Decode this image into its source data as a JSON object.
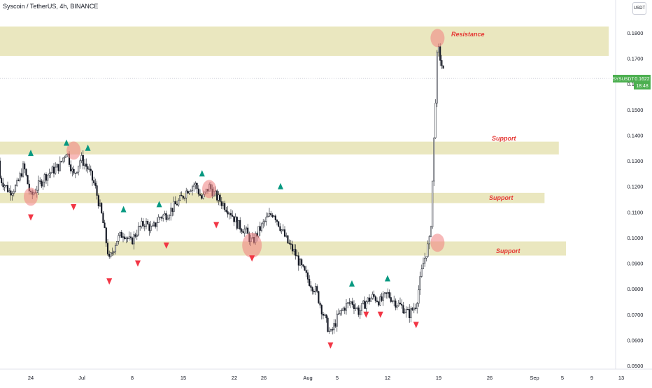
{
  "header": {
    "title": "Syscoin / TetherUS, 4h, BINANCE",
    "currency_button": "USDT"
  },
  "price_label": {
    "symbol": "SYSUSDT",
    "price": "0.1622",
    "countdown": "18:48",
    "color": "#4caf50"
  },
  "colors": {
    "background": "#ffffff",
    "up_marker": "#089981",
    "down_marker": "#f23645",
    "zone_fill": "#e6e3b4",
    "highlight_circle": "#f08080",
    "zone_label": "#e53935"
  },
  "chart_data": {
    "type": "candlestick",
    "symbol": "SYSUSDT",
    "timeframe": "4h",
    "exchange": "BINANCE",
    "yaxis": {
      "ticks": [
        "0.1800",
        "0.1700",
        "0.1600",
        "0.1500",
        "0.1400",
        "0.1300",
        "0.1200",
        "0.1100",
        "0.1000",
        "0.0900",
        "0.0800",
        "0.0700",
        "0.0600",
        "0.0500"
      ]
    },
    "xaxis": {
      "ticks": [
        "24",
        "Jul",
        "8",
        "15",
        "22",
        "26",
        "Aug",
        "5",
        "12",
        "19",
        "26",
        "Sep",
        "5",
        "9",
        "13"
      ]
    },
    "last_price": 0.1622,
    "price_path": [
      [
        "2024-06-18",
        0.13
      ],
      [
        "2024-06-19",
        0.126
      ],
      [
        "2024-06-20",
        0.122
      ],
      [
        "2024-06-21",
        0.118
      ],
      [
        "2024-06-22",
        0.12
      ],
      [
        "2024-06-23",
        0.128
      ],
      [
        "2024-06-24",
        0.116
      ],
      [
        "2024-06-25",
        0.12
      ],
      [
        "2024-06-26",
        0.124
      ],
      [
        "2024-06-27",
        0.126
      ],
      [
        "2024-06-28",
        0.128
      ],
      [
        "2024-06-29",
        0.134
      ],
      [
        "2024-06-30",
        0.124
      ],
      [
        "2024-07-01",
        0.131
      ],
      [
        "2024-07-02",
        0.127
      ],
      [
        "2024-07-03",
        0.12
      ],
      [
        "2024-07-04",
        0.108
      ],
      [
        "2024-07-05",
        0.091
      ],
      [
        "2024-07-06",
        0.099
      ],
      [
        "2024-07-07",
        0.102
      ],
      [
        "2024-07-08",
        0.098
      ],
      [
        "2024-07-09",
        0.103
      ],
      [
        "2024-07-10",
        0.106
      ],
      [
        "2024-07-11",
        0.103
      ],
      [
        "2024-07-12",
        0.108
      ],
      [
        "2024-07-13",
        0.109
      ],
      [
        "2024-07-14",
        0.112
      ],
      [
        "2024-07-15",
        0.115
      ],
      [
        "2024-07-16",
        0.119
      ],
      [
        "2024-07-17",
        0.121
      ],
      [
        "2024-07-18",
        0.115
      ],
      [
        "2024-07-19",
        0.12
      ],
      [
        "2024-07-20",
        0.116
      ],
      [
        "2024-07-21",
        0.113
      ],
      [
        "2024-07-22",
        0.11
      ],
      [
        "2024-07-23",
        0.105
      ],
      [
        "2024-07-24",
        0.103
      ],
      [
        "2024-07-25",
        0.098
      ],
      [
        "2024-07-26",
        0.103
      ],
      [
        "2024-07-27",
        0.107
      ],
      [
        "2024-07-28",
        0.11
      ],
      [
        "2024-07-29",
        0.104
      ],
      [
        "2024-07-30",
        0.098
      ],
      [
        "2024-07-31",
        0.094
      ],
      [
        "2024-08-01",
        0.088
      ],
      [
        "2024-08-02",
        0.083
      ],
      [
        "2024-08-03",
        0.079
      ],
      [
        "2024-08-04",
        0.07
      ],
      [
        "2024-08-05",
        0.062
      ],
      [
        "2024-08-06",
        0.069
      ],
      [
        "2024-08-07",
        0.073
      ],
      [
        "2024-08-08",
        0.075
      ],
      [
        "2024-08-09",
        0.071
      ],
      [
        "2024-08-10",
        0.075
      ],
      [
        "2024-08-11",
        0.077
      ],
      [
        "2024-08-12",
        0.075
      ],
      [
        "2024-08-13",
        0.078
      ],
      [
        "2024-08-14",
        0.075
      ],
      [
        "2024-08-15",
        0.073
      ],
      [
        "2024-08-16",
        0.07
      ],
      [
        "2024-08-17",
        0.074
      ],
      [
        "2024-08-18",
        0.09
      ],
      [
        "2024-08-19",
        0.1
      ],
      [
        "2024-08-20",
        0.175
      ],
      [
        "2024-08-21",
        0.1622
      ]
    ],
    "zones": [
      {
        "name": "Resistance",
        "low": 0.171,
        "high": 0.1825,
        "end": "2024-09-13"
      },
      {
        "name": "Support",
        "low": 0.1325,
        "high": 0.1375,
        "end": "2024-09-06"
      },
      {
        "name": "Support",
        "low": 0.1135,
        "high": 0.1175,
        "end": "2024-09-04"
      },
      {
        "name": "Support",
        "low": 0.093,
        "high": 0.0985,
        "end": "2024-09-07"
      }
    ],
    "zone_labels": [
      "Resistance",
      "Support",
      "Support",
      "Support"
    ],
    "up_markers": [
      [
        "2024-06-18",
        0.145
      ],
      [
        "2024-06-24",
        0.133
      ],
      [
        "2024-06-29",
        0.137
      ],
      [
        "2024-07-02",
        0.135
      ],
      [
        "2024-07-07",
        0.111
      ],
      [
        "2024-07-12",
        0.113
      ],
      [
        "2024-07-18",
        0.125
      ],
      [
        "2024-07-29",
        0.12
      ],
      [
        "2024-08-08",
        0.082
      ],
      [
        "2024-08-13",
        0.084
      ]
    ],
    "down_markers": [
      [
        "2024-06-24",
        0.108
      ],
      [
        "2024-06-30",
        0.112
      ],
      [
        "2024-07-05",
        0.083
      ],
      [
        "2024-07-09",
        0.09
      ],
      [
        "2024-07-13",
        0.097
      ],
      [
        "2024-07-20",
        0.105
      ],
      [
        "2024-07-25",
        0.092
      ],
      [
        "2024-08-05",
        0.058
      ],
      [
        "2024-08-10",
        0.07
      ],
      [
        "2024-08-12",
        0.07
      ],
      [
        "2024-08-17",
        0.066
      ]
    ],
    "highlights": [
      [
        "2024-06-24",
        0.116
      ],
      [
        "2024-06-30",
        0.134
      ],
      [
        "2024-07-19",
        0.119
      ],
      [
        "2024-07-25",
        0.097
      ],
      [
        "2024-08-20",
        0.178
      ],
      [
        "2024-08-20",
        0.098
      ]
    ],
    "grid": false
  }
}
